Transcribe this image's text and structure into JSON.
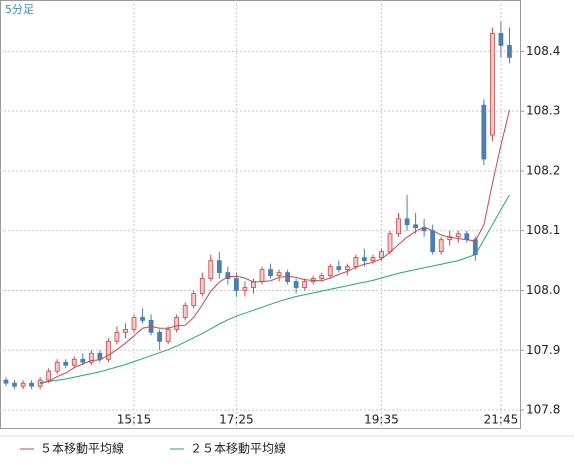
{
  "chart_data": {
    "type": "candlestick",
    "title": "5分足",
    "categories": [
      null,
      null,
      null,
      null,
      null,
      null,
      null,
      null,
      null,
      null,
      null,
      null,
      null,
      null,
      null,
      "15:15",
      null,
      null,
      null,
      null,
      null,
      null,
      null,
      null,
      null,
      null,
      null,
      "17:25",
      null,
      null,
      null,
      null,
      null,
      null,
      null,
      null,
      null,
      null,
      null,
      null,
      null,
      null,
      null,
      null,
      "19:35",
      null,
      null,
      null,
      null,
      null,
      null,
      null,
      null,
      null,
      null,
      null,
      null,
      null,
      "21:45",
      null
    ],
    "open": [
      107.85,
      107.845,
      107.84,
      107.845,
      107.84,
      107.85,
      107.865,
      107.88,
      107.875,
      107.885,
      107.88,
      107.895,
      107.885,
      107.915,
      107.93,
      107.935,
      107.955,
      107.95,
      107.93,
      107.915,
      107.935,
      107.955,
      107.975,
      107.995,
      108.02,
      108.05,
      108.03,
      108.02,
      108.0,
      108.005,
      108.015,
      108.035,
      108.025,
      108.03,
      108.015,
      108.005,
      108.015,
      108.02,
      108.025,
      108.04,
      108.035,
      108.04,
      108.055,
      108.05,
      108.055,
      108.065,
      108.095,
      108.12,
      108.11,
      108.105,
      108.1,
      108.065,
      108.085,
      108.09,
      108.095,
      108.085,
      108.31,
      108.26,
      108.43,
      108.41
    ],
    "high": [
      107.855,
      107.85,
      107.85,
      107.85,
      107.855,
      107.87,
      107.885,
      107.885,
      107.89,
      107.895,
      107.9,
      107.9,
      107.92,
      107.94,
      107.945,
      107.96,
      107.97,
      107.96,
      107.935,
      107.94,
      107.96,
      107.98,
      108.0,
      108.03,
      108.06,
      108.065,
      108.04,
      108.03,
      108.015,
      108.02,
      108.04,
      108.045,
      108.035,
      108.035,
      108.02,
      108.02,
      108.025,
      108.03,
      108.045,
      108.05,
      108.045,
      108.06,
      108.07,
      108.06,
      108.07,
      108.1,
      108.13,
      108.16,
      108.13,
      108.12,
      108.11,
      108.09,
      108.1,
      108.1,
      108.1,
      108.09,
      108.32,
      108.44,
      108.45,
      108.44
    ],
    "low": [
      107.84,
      107.835,
      107.835,
      107.835,
      107.835,
      107.845,
      107.86,
      107.87,
      107.87,
      107.875,
      107.875,
      107.88,
      107.88,
      107.91,
      107.92,
      107.93,
      107.945,
      107.925,
      107.9,
      107.91,
      107.93,
      107.95,
      107.97,
      107.99,
      108.015,
      108.02,
      108.01,
      107.99,
      107.99,
      107.995,
      108.01,
      108.02,
      108.015,
      108.01,
      107.995,
      108.0,
      108.01,
      108.015,
      108.02,
      108.03,
      108.025,
      108.035,
      108.04,
      108.045,
      108.05,
      108.06,
      108.09,
      108.1,
      108.095,
      108.09,
      108.06,
      108.06,
      108.075,
      108.08,
      108.08,
      108.05,
      108.21,
      108.25,
      108.39,
      108.38
    ],
    "close": [
      107.845,
      107.84,
      107.845,
      107.84,
      107.85,
      107.865,
      107.88,
      107.875,
      107.885,
      107.88,
      107.895,
      107.885,
      107.915,
      107.93,
      107.935,
      107.955,
      107.95,
      107.93,
      107.915,
      107.935,
      107.955,
      107.975,
      107.995,
      108.02,
      108.05,
      108.03,
      108.02,
      108.0,
      108.005,
      108.015,
      108.035,
      108.025,
      108.03,
      108.015,
      108.005,
      108.015,
      108.02,
      108.025,
      108.04,
      108.035,
      108.04,
      108.055,
      108.05,
      108.055,
      108.065,
      108.095,
      108.12,
      108.11,
      108.105,
      108.1,
      108.065,
      108.085,
      108.09,
      108.095,
      108.085,
      108.06,
      108.22,
      108.43,
      108.41,
      108.39
    ],
    "up_color": "#c44a4a",
    "down_color": "#4a7fb5",
    "series": [
      {
        "name": "５本移動平均線",
        "color": "#c44a4a",
        "values": [
          null,
          null,
          null,
          null,
          107.844,
          107.848,
          107.856,
          107.862,
          107.871,
          107.877,
          107.883,
          107.884,
          107.892,
          107.901,
          107.912,
          107.924,
          107.937,
          107.94,
          107.937,
          107.937,
          107.941,
          107.942,
          107.955,
          107.976,
          107.999,
          108.014,
          108.023,
          108.024,
          108.021,
          108.014,
          108.015,
          108.016,
          108.022,
          108.024,
          108.022,
          108.018,
          108.017,
          108.016,
          108.021,
          108.027,
          108.032,
          108.039,
          108.044,
          108.047,
          108.053,
          108.064,
          108.077,
          108.089,
          108.099,
          108.106,
          108.1,
          108.093,
          108.089,
          108.087,
          108.085,
          108.083,
          108.11,
          108.179,
          108.243,
          108.302
        ]
      },
      {
        "name": "２５本移動平均線",
        "color": "#2aa37a",
        "values": [
          null,
          null,
          null,
          null,
          107.846,
          107.848,
          107.85,
          107.852,
          107.855,
          107.858,
          107.861,
          107.864,
          107.868,
          107.872,
          107.876,
          107.881,
          107.886,
          107.891,
          107.896,
          107.901,
          107.907,
          107.914,
          107.921,
          107.928,
          107.936,
          107.944,
          107.951,
          107.957,
          107.962,
          107.967,
          107.972,
          107.977,
          107.982,
          107.986,
          107.99,
          107.993,
          107.996,
          107.999,
          108.002,
          108.005,
          108.008,
          108.011,
          108.014,
          108.017,
          108.021,
          108.025,
          108.029,
          108.032,
          108.035,
          108.038,
          108.041,
          108.044,
          108.047,
          108.05,
          108.055,
          108.06,
          108.085,
          108.11,
          108.135,
          108.16
        ]
      }
    ],
    "ylim": [
      107.77,
      108.486
    ],
    "yticks": [
      107.8,
      107.9,
      {
        "value": 108,
        "label": "108.0"
      },
      108.1,
      108.2,
      108.3,
      108.4
    ],
    "grid": true
  }
}
